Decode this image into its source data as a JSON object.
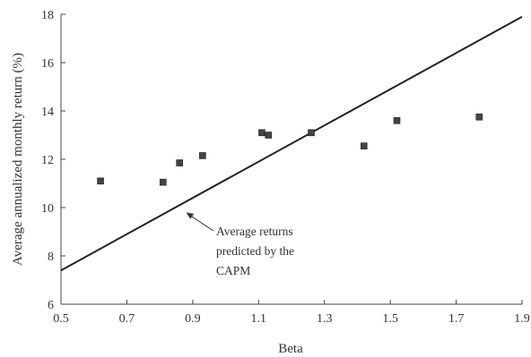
{
  "chart_data": {
    "type": "scatter",
    "xlabel": "Beta",
    "ylabel": "Average annualized monthly return (%)",
    "xlim": [
      0.5,
      1.9
    ],
    "ylim": [
      6,
      18
    ],
    "xticks": [
      "0.5",
      "0.7",
      "0.9",
      "1.1",
      "1.3",
      "1.5",
      "1.7",
      "1.9"
    ],
    "yticks": [
      "6",
      "8",
      "10",
      "12",
      "14",
      "16",
      "18"
    ],
    "grid": false,
    "points": [
      {
        "x": 0.62,
        "y": 11.1
      },
      {
        "x": 0.81,
        "y": 11.05
      },
      {
        "x": 0.86,
        "y": 11.85
      },
      {
        "x": 0.93,
        "y": 12.15
      },
      {
        "x": 1.11,
        "y": 13.1
      },
      {
        "x": 1.13,
        "y": 13.0
      },
      {
        "x": 1.26,
        "y": 13.1
      },
      {
        "x": 1.42,
        "y": 12.55
      },
      {
        "x": 1.52,
        "y": 13.6
      },
      {
        "x": 1.77,
        "y": 13.75
      }
    ],
    "capm_line": {
      "x": [
        0.5,
        1.9
      ],
      "y": [
        7.4,
        17.9
      ]
    },
    "annotation": {
      "lines": [
        "Average returns",
        "predicted by the",
        "CAPM"
      ],
      "points_to": {
        "x": 0.88,
        "y": 9.8
      }
    }
  }
}
